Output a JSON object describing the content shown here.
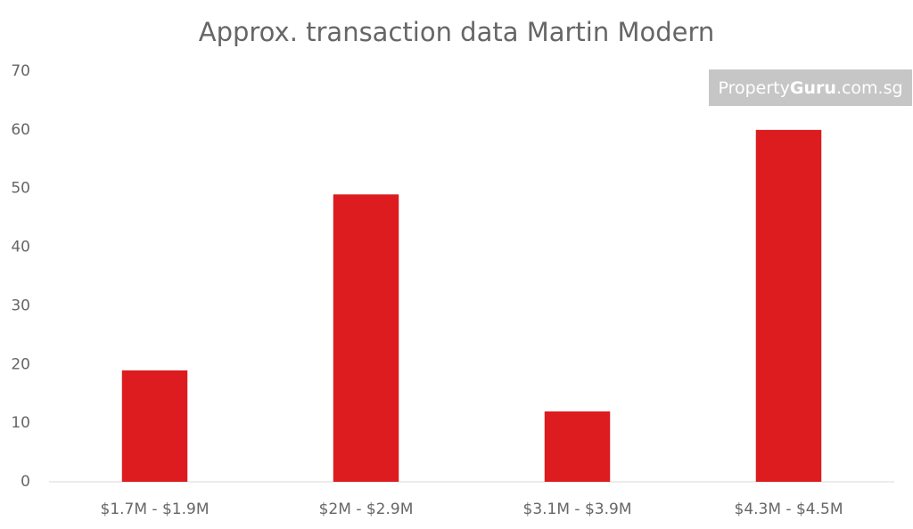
{
  "chart_data": {
    "type": "bar",
    "title": "Approx. transaction data Martin Modern",
    "categories": [
      "$1.7M - $1.9M",
      "$2M - $2.9M",
      "$3.1M - $3.9M",
      "$4.3M - $4.5M"
    ],
    "values": [
      19,
      49,
      12,
      60
    ],
    "color": "#dc1c1f",
    "ylim": [
      0,
      70
    ],
    "yticks": [
      0,
      10,
      20,
      30,
      40,
      50,
      60,
      70
    ],
    "grid": false,
    "watermark": {
      "prefix": "Property",
      "brand": "Guru",
      "suffix": ".com.sg"
    }
  }
}
